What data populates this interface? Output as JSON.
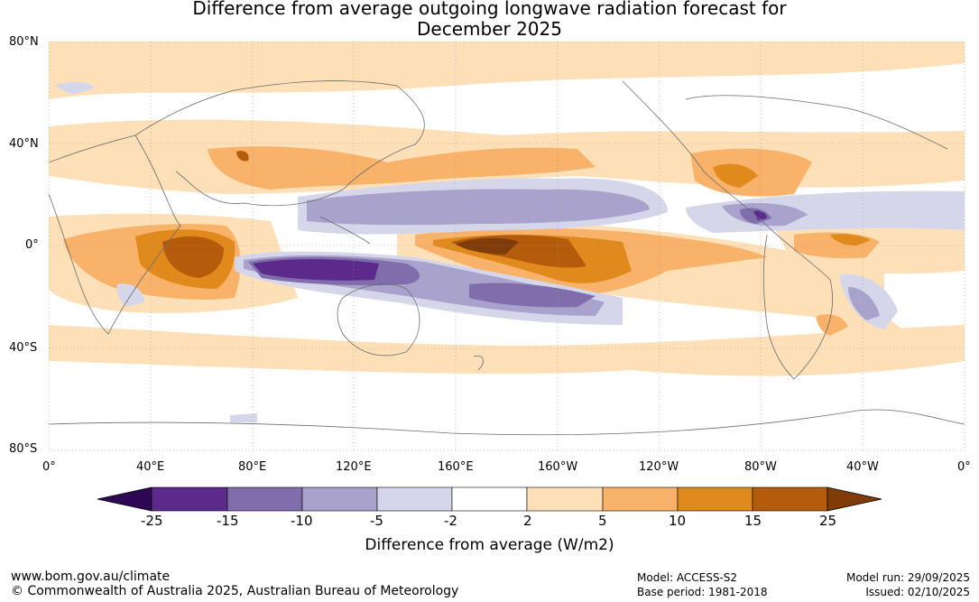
{
  "title": {
    "line1": "Difference from average outgoing longwave radiation forecast for",
    "line2": "December 2025"
  },
  "map": {
    "lat_labels": [
      "80°N",
      "40°N",
      "0°",
      "40°S",
      "80°S"
    ],
    "lon_labels": [
      "0°",
      "40°E",
      "80°E",
      "120°E",
      "160°E",
      "160°W",
      "120°W",
      "80°W",
      "40°W",
      "0°"
    ]
  },
  "colorbar": {
    "ticks": [
      "-25",
      "-15",
      "-10",
      "-5",
      "-2",
      "2",
      "5",
      "10",
      "15",
      "25"
    ],
    "colors": [
      "#5b2a8a",
      "#7f6eab",
      "#a9a2cc",
      "#d6d6ea",
      "#ffffff",
      "#fde0b8",
      "#f9b26a",
      "#e08a1e",
      "#b45c0b"
    ],
    "under_color": "#2e0854",
    "over_color": "#7f3b08",
    "label": "Difference from average (W/m2)"
  },
  "footer": {
    "url": "www.bom.gov.au/climate",
    "copyright": "© Commonwealth of Australia 2025, Australian Bureau of Meteorology",
    "model": "Model: ACCESS-S2",
    "base_period": "Base period: 1981-2018",
    "model_run": "Model run: 29/09/2025",
    "issued": "Issued: 02/10/2025"
  }
}
